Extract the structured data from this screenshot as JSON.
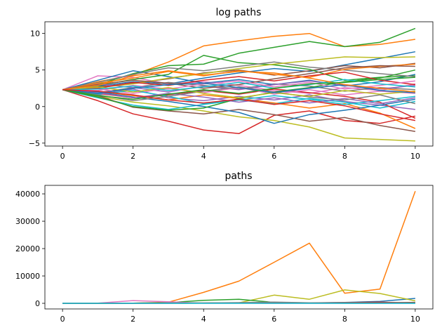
{
  "chart_data": [
    {
      "type": "line",
      "title": "log paths",
      "xlabel": "",
      "ylabel": "",
      "xlim": [
        -0.5,
        10.5
      ],
      "ylim": [
        -5.4,
        11.6
      ],
      "xticks": [
        0,
        2,
        4,
        6,
        8,
        10
      ],
      "yticks": [
        -5,
        0,
        5,
        10
      ],
      "grid": false,
      "x": [
        0,
        1,
        2,
        3,
        4,
        5,
        6,
        7,
        8,
        9,
        10
      ],
      "series": [
        {
          "color": "#1f77b4",
          "values": [
            2.3,
            2.8,
            3.4,
            3.1,
            3.9,
            4.6,
            5.2,
            4.8,
            5.7,
            6.6,
            7.5
          ]
        },
        {
          "color": "#ff7f0e",
          "values": [
            2.3,
            3.4,
            4.3,
            6.1,
            8.3,
            9.0,
            9.6,
            10.0,
            8.2,
            8.5,
            9.2
          ]
        },
        {
          "color": "#2ca02c",
          "values": [
            2.3,
            3.0,
            4.5,
            5.6,
            5.8,
            7.3,
            8.1,
            8.9,
            8.2,
            8.8,
            10.7
          ]
        },
        {
          "color": "#d62728",
          "values": [
            2.3,
            0.8,
            -1.0,
            -2.0,
            -3.2,
            -3.7,
            -1.2,
            -0.6,
            -1.9,
            -2.3,
            -1.3
          ]
        },
        {
          "color": "#9467bd",
          "values": [
            2.3,
            1.6,
            2.4,
            1.2,
            0.8,
            1.4,
            0.9,
            1.6,
            0.7,
            0.2,
            -0.4
          ]
        },
        {
          "color": "#8c564b",
          "values": [
            2.3,
            2.7,
            3.2,
            3.8,
            4.6,
            5.0,
            4.3,
            4.9,
            5.6,
            5.3,
            5.9
          ]
        },
        {
          "color": "#e377c2",
          "values": [
            2.3,
            4.2,
            4.0,
            3.1,
            3.4,
            2.9,
            2.2,
            1.8,
            2.6,
            2.2,
            3.1
          ]
        },
        {
          "color": "#7f7f7f",
          "values": [
            2.3,
            1.9,
            2.6,
            3.3,
            2.9,
            2.4,
            3.1,
            2.8,
            2.1,
            2.6,
            2.3
          ]
        },
        {
          "color": "#bcbd22",
          "values": [
            2.3,
            1.4,
            0.6,
            0.1,
            -0.6,
            -1.4,
            -1.9,
            -2.8,
            -4.3,
            -4.5,
            -4.7
          ]
        },
        {
          "color": "#17becf",
          "values": [
            2.3,
            1.2,
            0.2,
            -0.4,
            0.3,
            0.9,
            0.4,
            1.1,
            0.6,
            -0.2,
            0.7
          ]
        },
        {
          "color": "#1f77b4",
          "values": [
            2.3,
            3.6,
            4.9,
            4.1,
            3.2,
            3.7,
            3.0,
            3.6,
            2.8,
            3.4,
            4.4
          ]
        },
        {
          "color": "#ff7f0e",
          "values": [
            2.3,
            2.1,
            1.5,
            0.9,
            1.6,
            1.1,
            0.5,
            -0.2,
            0.4,
            -0.9,
            -3.0
          ]
        },
        {
          "color": "#2ca02c",
          "values": [
            2.3,
            2.9,
            3.7,
            4.4,
            7.0,
            6.0,
            5.7,
            5.1,
            3.6,
            4.0,
            4.2
          ]
        },
        {
          "color": "#d62728",
          "values": [
            2.3,
            1.8,
            1.2,
            1.6,
            2.2,
            1.7,
            2.4,
            1.9,
            1.4,
            0.6,
            -1.6
          ]
        },
        {
          "color": "#9467bd",
          "values": [
            2.3,
            3.1,
            2.6,
            2.0,
            2.8,
            2.3,
            3.0,
            3.5,
            2.9,
            2.4,
            2.9
          ]
        },
        {
          "color": "#8c564b",
          "values": [
            2.3,
            1.5,
            -0.1,
            -0.6,
            -1.0,
            -0.4,
            -1.1,
            -2.0,
            -1.5,
            -2.6,
            -3.4
          ]
        },
        {
          "color": "#e377c2",
          "values": [
            2.3,
            2.4,
            1.8,
            2.5,
            1.9,
            2.6,
            1.7,
            2.3,
            1.6,
            2.1,
            1.8
          ]
        },
        {
          "color": "#7f7f7f",
          "values": [
            2.3,
            3.3,
            4.4,
            5.3,
            4.9,
            5.5,
            6.1,
            5.4,
            5.0,
            4.5,
            4.1
          ]
        },
        {
          "color": "#bcbd22",
          "values": [
            2.3,
            2.6,
            3.1,
            3.9,
            4.5,
            5.2,
            5.8,
            6.3,
            6.8,
            6.7,
            6.8
          ]
        },
        {
          "color": "#17becf",
          "values": [
            2.3,
            1.7,
            2.2,
            1.4,
            0.4,
            0.9,
            1.5,
            1.0,
            0.3,
            0.8,
            1.4
          ]
        },
        {
          "color": "#1f77b4",
          "values": [
            2.3,
            2.0,
            1.3,
            0.7,
            0.0,
            -0.8,
            -2.3,
            -1.1,
            -0.5,
            0.2,
            1.0
          ]
        },
        {
          "color": "#ff7f0e",
          "values": [
            2.3,
            3.2,
            3.9,
            4.8,
            4.2,
            4.9,
            4.4,
            4.0,
            5.1,
            5.5,
            5.8
          ]
        },
        {
          "color": "#2ca02c",
          "values": [
            2.3,
            1.3,
            0.0,
            -0.5,
            -0.2,
            1.1,
            2.0,
            2.6,
            3.4,
            3.9,
            5.0
          ]
        },
        {
          "color": "#d62728",
          "values": [
            2.3,
            2.5,
            3.3,
            2.9,
            3.6,
            4.1,
            3.5,
            4.2,
            4.7,
            3.6,
            3.0
          ]
        },
        {
          "color": "#9467bd",
          "values": [
            2.3,
            1.9,
            1.2,
            1.8,
            1.3,
            0.6,
            1.2,
            0.5,
            1.1,
            0.4,
            1.2
          ]
        },
        {
          "color": "#8c564b",
          "values": [
            2.3,
            3.0,
            3.6,
            3.2,
            2.5,
            3.0,
            3.8,
            4.5,
            5.3,
            5.6,
            5.5
          ]
        },
        {
          "color": "#e377c2",
          "values": [
            2.3,
            2.2,
            2.9,
            2.4,
            3.1,
            3.5,
            2.7,
            3.3,
            2.4,
            2.9,
            3.5
          ]
        },
        {
          "color": "#7f7f7f",
          "values": [
            2.3,
            1.6,
            0.8,
            1.4,
            2.1,
            2.7,
            2.0,
            1.3,
            0.9,
            1.6,
            0.4
          ]
        },
        {
          "color": "#bcbd22",
          "values": [
            2.3,
            2.7,
            2.0,
            2.6,
            1.8,
            1.2,
            1.9,
            1.4,
            2.2,
            1.7,
            2.1
          ]
        },
        {
          "color": "#17becf",
          "values": [
            2.3,
            2.4,
            2.8,
            2.2,
            2.7,
            3.3,
            2.5,
            3.0,
            3.7,
            3.1,
            2.7
          ]
        },
        {
          "color": "#1f77b4",
          "values": [
            2.3,
            1.8,
            2.5,
            3.0,
            3.2,
            2.6,
            1.9,
            2.5,
            3.0,
            2.2,
            1.9
          ]
        },
        {
          "color": "#ff7f0e",
          "values": [
            2.3,
            2.9,
            4.2,
            4.9,
            4.3,
            4.8,
            4.6,
            3.9,
            3.0,
            2.5,
            2.0
          ]
        },
        {
          "color": "#2ca02c",
          "values": [
            2.3,
            1.5,
            1.0,
            1.7,
            2.3,
            1.8,
            2.5,
            3.1,
            3.3,
            3.7,
            4.0
          ]
        },
        {
          "color": "#d62728",
          "values": [
            2.3,
            2.1,
            1.6,
            0.9,
            0.5,
            1.0,
            0.3,
            0.8,
            0.1,
            -1.0,
            -1.9
          ]
        }
      ]
    },
    {
      "type": "line",
      "title": "paths",
      "xlabel": "",
      "ylabel": "",
      "xlim": [
        -0.5,
        10.5
      ],
      "ylim": [
        -2050,
        43100
      ],
      "xticks": [
        0,
        2,
        4,
        6,
        8,
        10
      ],
      "yticks": [
        0,
        10000,
        20000,
        30000,
        40000
      ],
      "grid": false,
      "x": [
        0,
        1,
        2,
        3,
        4,
        5,
        6,
        7,
        8,
        9,
        10
      ],
      "series": [
        {
          "color": "#1f77b4",
          "values": [
            10,
            15,
            30,
            20,
            50,
            100,
            180,
            120,
            300,
            700,
            1800
          ]
        },
        {
          "color": "#ff7f0e",
          "values": [
            10,
            30,
            75,
            400,
            4000,
            8100,
            15000,
            22000,
            3700,
            5200,
            41000
          ]
        },
        {
          "color": "#bcbd22",
          "values": [
            10,
            15,
            20,
            50,
            90,
            180,
            3000,
            1500,
            4900,
            3600,
            900
          ]
        },
        {
          "color": "#2ca02c",
          "values": [
            10,
            20,
            90,
            270,
            1100,
            1500,
            330,
            160,
            40,
            50,
            70
          ]
        },
        {
          "color": "#e377c2",
          "values": [
            10,
            70,
            1000,
            600,
            30,
            20,
            10,
            6,
            14,
            10,
            20
          ]
        },
        {
          "color": "#d62728",
          "values": [
            10,
            12,
            25,
            45,
            100,
            150,
            80,
            200,
            250,
            400,
            120
          ]
        },
        {
          "color": "#9467bd",
          "values": [
            10,
            8,
            15,
            25,
            60,
            130,
            90,
            160,
            180,
            60,
            30
          ]
        },
        {
          "color": "#8c564b",
          "values": [
            10,
            20,
            25,
            40,
            100,
            150,
            74,
            130,
            270,
            200,
            370
          ]
        },
        {
          "color": "#7f7f7f",
          "values": [
            10,
            30,
            80,
            200,
            130,
            250,
            450,
            220,
            150,
            90,
            60
          ]
        },
        {
          "color": "#17becf",
          "values": [
            10,
            6,
            9,
            4,
            1.5,
            2.5,
            4.5,
            3,
            1.4,
            2.2,
            4
          ]
        }
      ]
    }
  ]
}
